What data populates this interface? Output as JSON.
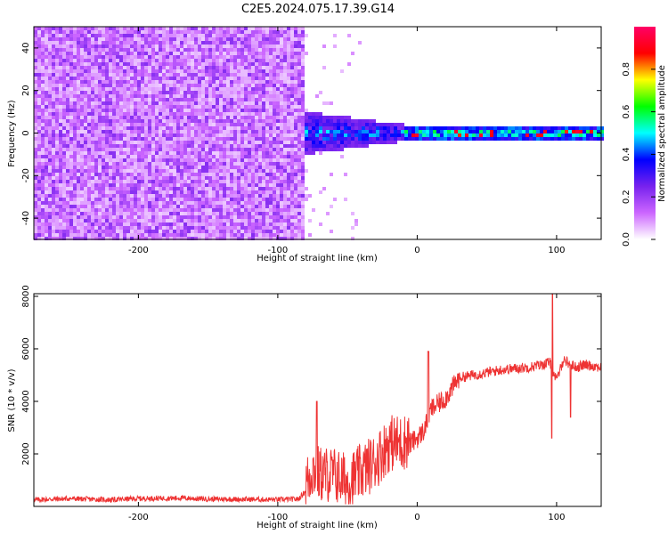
{
  "title": "C2E5.2024.075.17.39.G14",
  "chart_data": [
    {
      "type": "heatmap",
      "xlabel": "Height of straight line (km)",
      "ylabel": "Frequency (Hz)",
      "xlim": [
        -275,
        132
      ],
      "ylim": [
        -50,
        50
      ],
      "x_ticks": [
        -200,
        -100,
        0,
        100
      ],
      "y_ticks": [
        -40,
        -20,
        0,
        20,
        40
      ],
      "colorbar": {
        "label": "Normalized spectral amplitude",
        "range": [
          0,
          1
        ],
        "ticks": [
          "0.0",
          "0.2",
          "0.4",
          "0.6",
          "0.8"
        ],
        "colors": [
          "#ffffff",
          "#cc66ff",
          "#7722ee",
          "#0000ff",
          "#00ffff",
          "#00ff00",
          "#ffff00",
          "#ff0000",
          "#ff0066"
        ]
      },
      "regions": [
        {
          "x": [
            -275,
            -80
          ],
          "freq_range": [
            -50,
            50
          ],
          "amplitude": "0.05-0.25 (noise)"
        },
        {
          "x": [
            -80,
            -10
          ],
          "freq_range": [
            -10,
            10
          ],
          "amplitude": "0.2-0.5"
        },
        {
          "x": [
            -10,
            132
          ],
          "freq_range": [
            -3,
            3
          ],
          "amplitude": "0.3-0.9"
        }
      ]
    },
    {
      "type": "line",
      "xlabel": "Height of straight line (km)",
      "ylabel": "SNR (10 * v/v)",
      "xlim": [
        -275,
        132
      ],
      "ylim": [
        0,
        8100
      ],
      "x_ticks": [
        -200,
        -100,
        0,
        100
      ],
      "y_ticks": [
        2000,
        4000,
        6000,
        8000
      ],
      "color": "#ee3333",
      "series": [
        {
          "x": [
            -275,
            -250,
            -220,
            -200,
            -170,
            -150,
            -120,
            -100,
            -85,
            -80,
            -75,
            -70,
            -60,
            -50,
            -40,
            -30,
            -20,
            -10,
            0,
            5,
            10,
            20,
            30,
            40,
            60,
            80,
            90,
            95,
            100,
            105,
            110,
            115,
            120,
            132
          ],
          "values": [
            250,
            300,
            250,
            300,
            320,
            280,
            270,
            260,
            280,
            600,
            1200,
            1000,
            1000,
            700,
            1100,
            1500,
            2200,
            2200,
            2600,
            2900,
            3700,
            4100,
            4900,
            5000,
            5200,
            5300,
            5400,
            5500,
            4800,
            5600,
            5400,
            5300,
            5400,
            5300
          ]
        }
      ]
    }
  ]
}
